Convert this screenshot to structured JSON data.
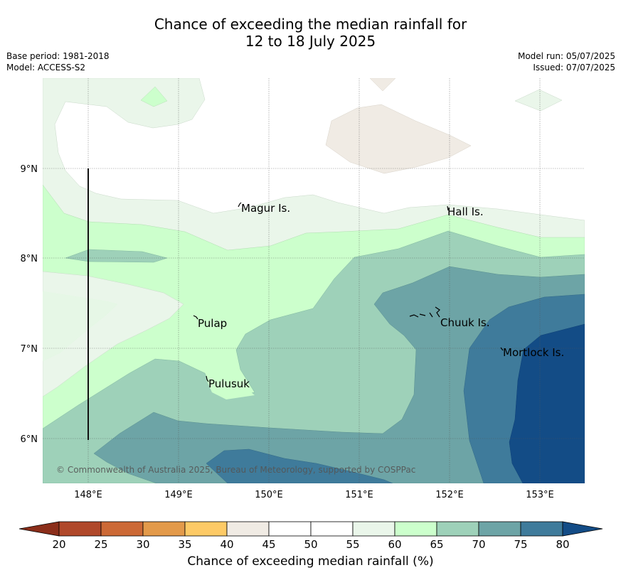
{
  "title": {
    "line1": "Chance of exceeding the median rainfall for",
    "line2": "12 to 18 July 2025"
  },
  "meta": {
    "base_period": "Base period: 1981-2018",
    "model": "Model: ACCESS-S2",
    "model_run": "Model run: 05/07/2025",
    "issued": "Issued: 07/07/2025"
  },
  "map": {
    "lon_labels": [
      "148°E",
      "149°E",
      "150°E",
      "151°E",
      "152°E",
      "153°E"
    ],
    "lat_labels": [
      "9°N",
      "8°N",
      "7°N",
      "6°N"
    ],
    "places": [
      "Magur Is.",
      "Hall Is.",
      "Pulap",
      "Chuuk Is.",
      "Mortlock Is.",
      "Pulusuk"
    ],
    "copyright": "© Commonwealth of Australia 2025, Bureau of Meteorology, supported by COSPPac"
  },
  "colorbar": {
    "label": "Chance of exceeding median rainfall (%)",
    "ticks": [
      "20",
      "25",
      "30",
      "35",
      "40",
      "45",
      "50",
      "55",
      "60",
      "65",
      "70",
      "75",
      "80"
    ],
    "colors": {
      "under": "#8b2e1a",
      "c20_25": "#b0482a",
      "c25_30": "#cc6936",
      "c30_35": "#e39a4a",
      "c35_40": "#fdca66",
      "c40_45": "#f0ebe4",
      "c45_50": "#ffffff",
      "c50_55": "#ffffff",
      "c55_60": "#eaf6ea",
      "c60_65": "#ccffcc",
      "c65_70": "#9ed1b9",
      "c70_75": "#6da4a6",
      "c75_80": "#3f7b9b",
      "over": "#134c86"
    }
  }
}
